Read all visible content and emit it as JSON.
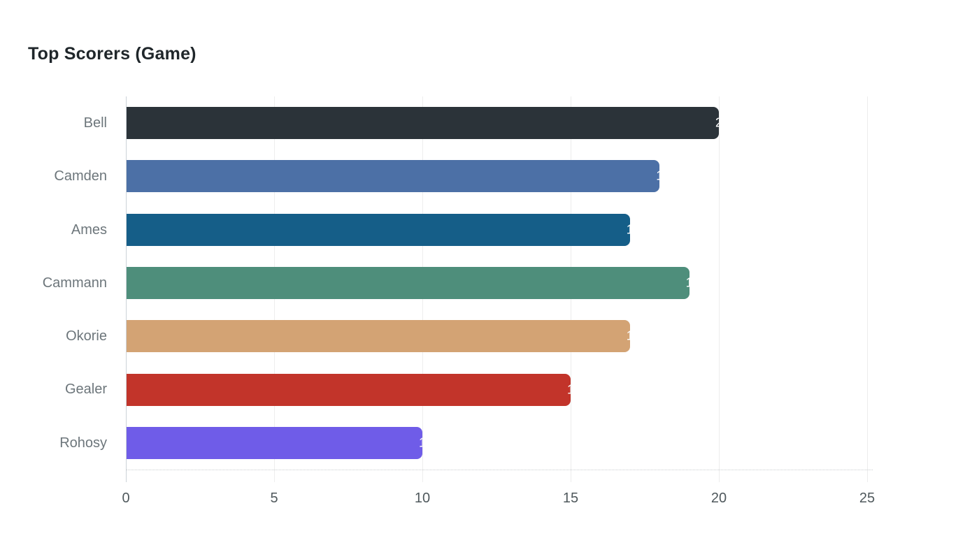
{
  "title": "Top Scorers (Game)",
  "chart_data": {
    "type": "bar",
    "orientation": "horizontal",
    "title": "Top Scorers (Game)",
    "categories": [
      "Bell",
      "Camden",
      "Ames",
      "Cammann",
      "Okorie",
      "Gealer",
      "Rohosy"
    ],
    "values": [
      20,
      18,
      17,
      19,
      17,
      15,
      10
    ],
    "bar_colors": [
      "#2b3339",
      "#4c70a6",
      "#155e88",
      "#4e8e7b",
      "#d3a374",
      "#c2342a",
      "#6f5ce8"
    ],
    "value_labels_visible_as_clipped_white_text": true,
    "xlabel": "",
    "ylabel": "",
    "xlim": [
      0,
      25
    ],
    "x_ticks": [
      0,
      5,
      10,
      15,
      20,
      25
    ],
    "grid": "vertical-only",
    "legend": "none"
  },
  "colors": {
    "background": "#ffffff",
    "title_text": "#1f262a",
    "category_label_text": "#6d767b",
    "tick_label_text": "#4f585c",
    "gridline": "#ededed",
    "axis_line": "#ccd2d8",
    "baseline_dotted": "#c9cdd0",
    "value_label_text": "#ffffff"
  }
}
